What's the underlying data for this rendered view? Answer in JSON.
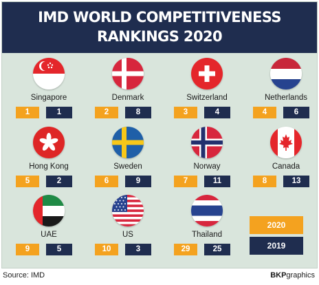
{
  "header": {
    "title_line1": "IMD WORLD COMPETITIVENESS",
    "title_line2": "RANKINGS 2020"
  },
  "chart_data": {
    "type": "table",
    "title": "IMD WORLD COMPETITIVENESS RANKINGS 2020",
    "columns": [
      "2020",
      "2019"
    ],
    "rows": [
      {
        "country": "Singapore",
        "flag": "singapore-flag-icon",
        "rank_2020": 1,
        "rank_2019": 1
      },
      {
        "country": "Denmark",
        "flag": "denmark-flag-icon",
        "rank_2020": 2,
        "rank_2019": 8
      },
      {
        "country": "Switzerland",
        "flag": "switzerland-flag-icon",
        "rank_2020": 3,
        "rank_2019": 4
      },
      {
        "country": "Netherlands",
        "flag": "netherlands-flag-icon",
        "rank_2020": 4,
        "rank_2019": 6
      },
      {
        "country": "Hong Kong",
        "flag": "hong-kong-flag-icon",
        "rank_2020": 5,
        "rank_2019": 2
      },
      {
        "country": "Sweden",
        "flag": "sweden-flag-icon",
        "rank_2020": 6,
        "rank_2019": 9
      },
      {
        "country": "Norway",
        "flag": "norway-flag-icon",
        "rank_2020": 7,
        "rank_2019": 11
      },
      {
        "country": "Canada",
        "flag": "canada-flag-icon",
        "rank_2020": 8,
        "rank_2019": 13
      },
      {
        "country": "UAE",
        "flag": "uae-flag-icon",
        "rank_2020": 9,
        "rank_2019": 5
      },
      {
        "country": "US",
        "flag": "us-flag-icon",
        "rank_2020": 10,
        "rank_2019": 3
      },
      {
        "country": "Thailand",
        "flag": "thailand-flag-icon",
        "rank_2020": 29,
        "rank_2019": 25
      }
    ],
    "legend": {
      "label_2020": "2020",
      "label_2019": "2019",
      "color_2020": "#f4a21f",
      "color_2019": "#1f2d4f",
      "placement": "bottom-right"
    }
  },
  "footer": {
    "source": "Source: IMD",
    "credit_bold": "BKP",
    "credit_rest": "graphics"
  }
}
